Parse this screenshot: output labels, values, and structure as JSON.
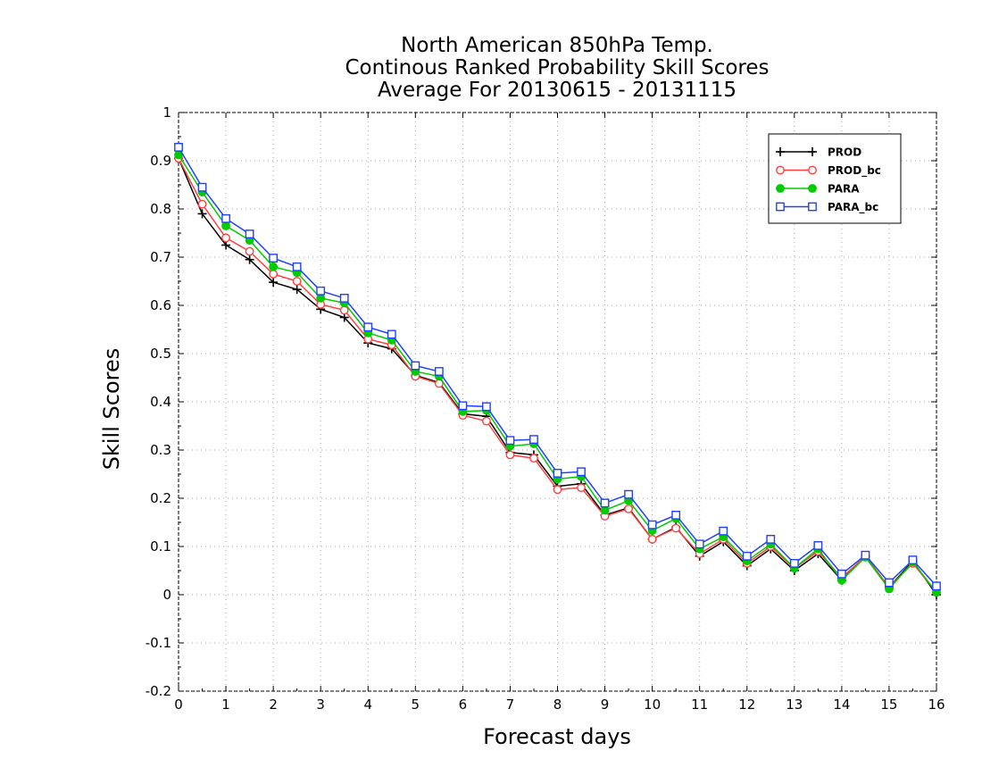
{
  "chart_data": {
    "type": "line",
    "title_lines": [
      "North American 850hPa Temp.",
      "Continous Ranked Probability Skill Scores",
      "Average For 20130615 - 20131115"
    ],
    "xlabel": "Forecast days",
    "ylabel": "Skill Scores",
    "xlim": [
      0,
      16
    ],
    "ylim": [
      -0.2,
      1
    ],
    "xticks": [
      0,
      1,
      2,
      3,
      4,
      5,
      6,
      7,
      8,
      9,
      10,
      11,
      12,
      13,
      14,
      15,
      16
    ],
    "yticks": [
      -0.2,
      -0.1,
      0,
      0.1,
      0.2,
      0.3,
      0.4,
      0.5,
      0.6,
      0.7,
      0.8,
      0.9,
      1
    ],
    "ytick_labels": [
      "-0.2",
      "-0.1",
      "0",
      "0.1",
      "0.2",
      "0.3",
      "0.4",
      "0.5",
      "0.6",
      "0.7",
      "0.8",
      "0.9",
      "1"
    ],
    "xtick_labels": [
      "0",
      "1",
      "2",
      "3",
      "4",
      "5",
      "6",
      "7",
      "8",
      "9",
      "10",
      "11",
      "12",
      "13",
      "14",
      "15",
      "16"
    ],
    "grid": true,
    "legend_position": "top-right",
    "x": [
      0,
      0.5,
      1,
      1.5,
      2,
      2.5,
      3,
      3.5,
      4,
      4.5,
      5,
      5.5,
      6,
      6.5,
      7,
      7.5,
      8,
      8.5,
      9,
      9.5,
      10,
      10.5,
      11,
      11.5,
      12,
      12.5,
      13,
      13.5,
      14,
      14.5,
      15,
      15.5,
      16
    ],
    "series": [
      {
        "name": "PROD",
        "color": "#000000",
        "marker": "plus",
        "values": [
          0.905,
          0.79,
          0.725,
          0.695,
          0.648,
          0.633,
          0.592,
          0.575,
          0.522,
          0.51,
          0.455,
          0.44,
          0.375,
          0.37,
          0.295,
          0.29,
          0.225,
          0.23,
          0.165,
          0.18,
          0.115,
          0.14,
          0.08,
          0.11,
          0.06,
          0.095,
          0.05,
          0.085,
          0.03,
          0.08,
          0.015,
          0.07,
          0.0
        ]
      },
      {
        "name": "PROD_bc",
        "color": "#ff4040",
        "marker": "circle",
        "values": [
          0.905,
          0.81,
          0.74,
          0.712,
          0.665,
          0.65,
          0.602,
          0.59,
          0.53,
          0.518,
          0.453,
          0.438,
          0.372,
          0.36,
          0.29,
          0.283,
          0.218,
          0.222,
          0.163,
          0.178,
          0.115,
          0.138,
          0.085,
          0.115,
          0.065,
          0.1,
          0.055,
          0.09,
          0.035,
          0.08,
          0.015,
          0.065,
          0.005
        ]
      },
      {
        "name": "PARA",
        "color": "#00cc00",
        "marker": "filled-circle",
        "values": [
          0.912,
          0.835,
          0.765,
          0.735,
          0.68,
          0.668,
          0.615,
          0.605,
          0.543,
          0.528,
          0.463,
          0.453,
          0.38,
          0.382,
          0.308,
          0.313,
          0.24,
          0.245,
          0.175,
          0.195,
          0.133,
          0.158,
          0.095,
          0.12,
          0.07,
          0.105,
          0.055,
          0.095,
          0.03,
          0.078,
          0.012,
          0.068,
          0.005
        ]
      },
      {
        "name": "PARA_bc",
        "color": "#2040ff",
        "marker": "square",
        "values": [
          0.928,
          0.845,
          0.78,
          0.748,
          0.698,
          0.68,
          0.63,
          0.615,
          0.555,
          0.54,
          0.475,
          0.463,
          0.392,
          0.39,
          0.32,
          0.322,
          0.252,
          0.255,
          0.19,
          0.208,
          0.145,
          0.165,
          0.105,
          0.132,
          0.08,
          0.115,
          0.065,
          0.102,
          0.043,
          0.082,
          0.025,
          0.072,
          0.018
        ]
      }
    ]
  }
}
